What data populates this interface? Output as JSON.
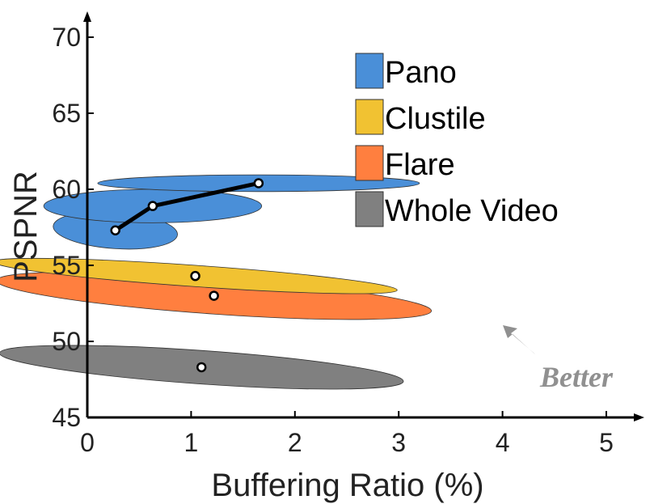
{
  "chart_data": {
    "type": "scatter",
    "xlabel": "Buffering Ratio (%)",
    "ylabel": "PSPNR",
    "xlim": [
      0,
      5
    ],
    "ylim": [
      45,
      70
    ],
    "x_ticks": [
      "0",
      "1",
      "2",
      "3",
      "4",
      "5"
    ],
    "y_ticks": [
      "45",
      "50",
      "55",
      "60",
      "65",
      "70"
    ],
    "grid": false,
    "legend_position": "top-right",
    "annotation": "Better",
    "series": [
      {
        "name": "Pano",
        "color": "#4a8fd8",
        "points": [
          {
            "x": 0.27,
            "y": 57.3,
            "x_spread": 0.6,
            "y_spread": 1.2
          },
          {
            "x": 0.63,
            "y": 58.9,
            "x_spread": 1.05,
            "y_spread": 1.1
          },
          {
            "x": 1.65,
            "y": 60.4,
            "x_spread": 1.55,
            "y_spread": 0.55
          }
        ],
        "connected": true
      },
      {
        "name": "Clustile",
        "color": "#f1c232",
        "points": [
          {
            "x": 1.04,
            "y": 54.3,
            "x_spread": 1.95,
            "y_spread": 0.7
          }
        ],
        "connected": false
      },
      {
        "name": "Flare",
        "color": "#ff7f3f",
        "points": [
          {
            "x": 1.22,
            "y": 53.0,
            "x_spread": 2.1,
            "y_spread": 1.2
          }
        ],
        "connected": false
      },
      {
        "name": "Whole Video",
        "color": "#808080",
        "points": [
          {
            "x": 1.1,
            "y": 48.3,
            "x_spread": 1.95,
            "y_spread": 1.1
          }
        ],
        "connected": false
      }
    ]
  }
}
